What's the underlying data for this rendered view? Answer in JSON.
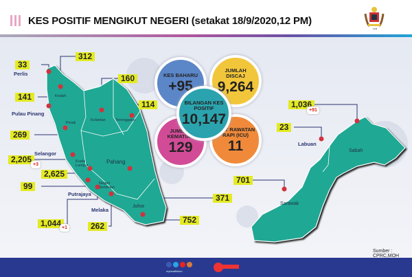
{
  "header": {
    "title": "KES POSITIF MENGIKUT NEGERI (setakat 18/9/2020,12 PM)",
    "crest_text": "KEMENTERIAN KESIHATAN MALAYSIA"
  },
  "summary": {
    "new": {
      "label": "KES BAHARU",
      "value": "+95",
      "color": "#5b86c8"
    },
    "discharged": {
      "label": "JUMLAH DISCAJ",
      "value": "9,264",
      "color": "#f2c63a"
    },
    "total": {
      "label": "BILANGAN KES POSITIF",
      "value": "10,147",
      "color": "#2ba3ae"
    },
    "deaths": {
      "label": "JUMLAH KEMATIAN",
      "value": "129",
      "color": "#d24b97"
    },
    "icu": {
      "label": "UNIT RAWATAN RAPI (ICU)",
      "value": "11",
      "color": "#f08a3a"
    }
  },
  "states": {
    "perlis": {
      "name": "Perlis",
      "cases": "33"
    },
    "kedah": {
      "name": "Kedah",
      "cases": "312"
    },
    "kelantan": {
      "name": "Kelantan",
      "cases": "160"
    },
    "pulau_pinang": {
      "name": "Pulau Pinang",
      "cases": "141"
    },
    "terengganu": {
      "name": "Terengganu",
      "cases": "114"
    },
    "perak": {
      "name": "Perak",
      "cases": "269"
    },
    "selangor": {
      "name": "Selangor",
      "cases": "2,205",
      "new": "+3"
    },
    "kuala_lumpur": {
      "name": "Kuala Lumpur",
      "cases": "2,625"
    },
    "putrajaya": {
      "name": "Putrajaya",
      "cases": "99"
    },
    "pahang": {
      "name": "Pahang",
      "cases": "371"
    },
    "negeri_sembilan": {
      "name": "Negeri Sembilan",
      "cases": "262"
    },
    "melaka": {
      "name": "Melaka",
      "cases": "1,044",
      "new": "+1"
    },
    "johor": {
      "name": "Johor",
      "cases": "752"
    },
    "sabah": {
      "name": "Sabah",
      "cases": "1,036",
      "new": "+91"
    },
    "labuan": {
      "name": "Labuan",
      "cases": "23"
    },
    "sarawak": {
      "name": "Sarawak",
      "cases": "701"
    }
  },
  "source": "Sumber : CPRC,MOH",
  "footer": {
    "social_handle": "myhealthkkm",
    "icons": [
      "facebook-icon",
      "twitter-icon",
      "youtube-icon",
      "instagram-icon"
    ]
  },
  "colors": {
    "map": "#1fa894",
    "label_box": "#e4ea22",
    "footer": "#2a3990",
    "pin": "#d0323e"
  }
}
